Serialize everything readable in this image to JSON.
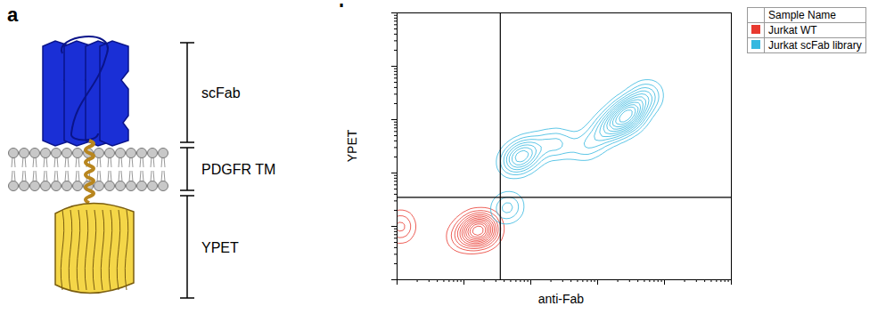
{
  "diagram": {
    "letter": "a",
    "labels": [
      "scFab",
      "PDGFR TM",
      "YPET"
    ]
  },
  "chart_data": {
    "letter": "b",
    "type": "contour",
    "xlabel": "anti-Fab",
    "ylabel": "YPET",
    "log": true,
    "tick_labels": false,
    "xlim": [
      1,
      100000
    ],
    "ylim": [
      1,
      100000
    ],
    "xticks": [
      1,
      2,
      3,
      4,
      5,
      6,
      7,
      8,
      9,
      10,
      20,
      30,
      40,
      50,
      60,
      70,
      80,
      90,
      100,
      200,
      300,
      400,
      500,
      600,
      700,
      800,
      900,
      1000,
      2000,
      3000,
      4000,
      5000,
      6000,
      7000,
      8000,
      9000,
      10000,
      20000,
      30000,
      40000,
      50000,
      60000,
      70000,
      80000,
      90000,
      100000
    ],
    "yticks": [
      1,
      2,
      3,
      4,
      5,
      6,
      7,
      8,
      9,
      10,
      20,
      30,
      40,
      50,
      60,
      70,
      80,
      90,
      100,
      200,
      300,
      400,
      500,
      600,
      700,
      800,
      900,
      1000,
      2000,
      3000,
      4000,
      5000,
      6000,
      7000,
      8000,
      9000,
      10000,
      20000,
      30000,
      40000,
      50000,
      60000,
      70000,
      80000,
      90000,
      100000
    ],
    "quadrant_x": 35,
    "quadrant_y": 35,
    "legend": "right",
    "legend_title": "Sample Name",
    "series": [
      {
        "name": "Jurkat WT",
        "color": "#e8392f",
        "x": [
          1.1,
          1.1,
          1.15,
          8,
          10,
          12,
          14,
          16,
          18,
          20,
          22,
          16,
          13,
          19,
          24,
          15,
          17
        ],
        "y": [
          8,
          10,
          12,
          6,
          8,
          7,
          9,
          8,
          10,
          8,
          9,
          11,
          6,
          7,
          10,
          8,
          9
        ]
      },
      {
        "name": "Jurkat scFab library",
        "color": "#35b8e0",
        "x": [
          600,
          900,
          1200,
          1500,
          2000,
          2500,
          3000,
          3500,
          4000,
          5000,
          2200,
          2800,
          1800,
          3200,
          6000,
          50,
          70,
          90,
          60,
          80,
          120,
          200,
          300,
          40,
          50
        ],
        "y": [
          300,
          400,
          600,
          700,
          900,
          1000,
          1300,
          1600,
          2000,
          2500,
          1100,
          1200,
          800,
          1400,
          3000,
          150,
          200,
          250,
          180,
          220,
          300,
          350,
          350,
          20,
          25
        ]
      }
    ]
  }
}
